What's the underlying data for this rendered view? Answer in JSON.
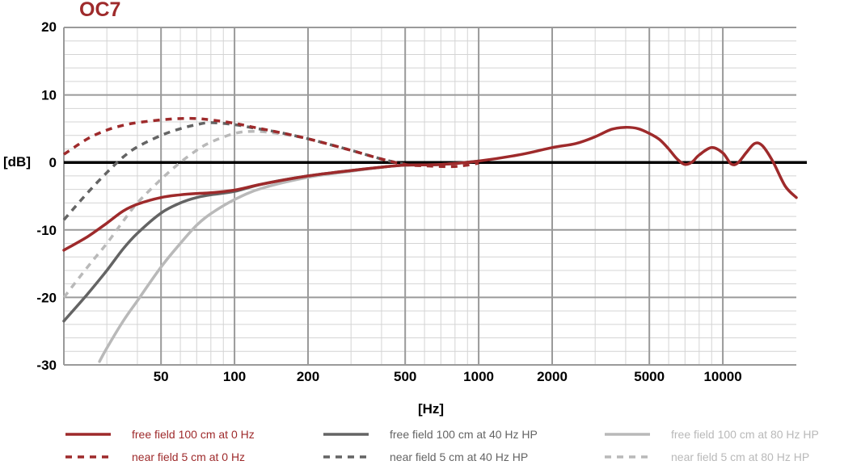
{
  "chart_data": {
    "type": "line",
    "title": "OC7",
    "xlabel": "[Hz]",
    "ylabel": "[dB]",
    "xscale": "log",
    "xlim": [
      20,
      20000
    ],
    "ylim": [
      -30,
      20
    ],
    "xticks": [
      {
        "value": 50,
        "label": "50"
      },
      {
        "value": 100,
        "label": "100"
      },
      {
        "value": 200,
        "label": "200"
      },
      {
        "value": 500,
        "label": "500"
      },
      {
        "value": 1000,
        "label": "1000"
      },
      {
        "value": 2000,
        "label": "2000"
      },
      {
        "value": 5000,
        "label": "5000"
      },
      {
        "value": 10000,
        "label": "10000"
      }
    ],
    "yticks": [
      {
        "value": 20,
        "label": "20"
      },
      {
        "value": 10,
        "label": "10"
      },
      {
        "value": 0,
        "label": "0"
      },
      {
        "value": -10,
        "label": "-10"
      },
      {
        "value": -20,
        "label": "-20"
      },
      {
        "value": -30,
        "label": "-30"
      }
    ],
    "grid": true,
    "legend_position": "bottom",
    "colors": {
      "title": "#9e2a2b",
      "axis_zero": "#000000",
      "grid_major": "#9a9a9a",
      "grid_minor": "#d4d4d4"
    },
    "series": [
      {
        "name": "free field 100 cm at 0 Hz",
        "color": "#9e2a2b",
        "dash": "solid",
        "points": [
          [
            20,
            -13
          ],
          [
            25,
            -11
          ],
          [
            30,
            -9
          ],
          [
            35,
            -7.2
          ],
          [
            40,
            -6.2
          ],
          [
            50,
            -5.2
          ],
          [
            60,
            -4.8
          ],
          [
            70,
            -4.6
          ],
          [
            80,
            -4.5
          ],
          [
            100,
            -4.1
          ],
          [
            130,
            -3.2
          ],
          [
            200,
            -2
          ],
          [
            300,
            -1.2
          ],
          [
            400,
            -0.7
          ],
          [
            500,
            -0.4
          ],
          [
            700,
            -0.3
          ],
          [
            1000,
            0.2
          ],
          [
            1500,
            1.2
          ],
          [
            2000,
            2.2
          ],
          [
            2500,
            2.8
          ],
          [
            3000,
            3.8
          ],
          [
            3500,
            4.9
          ],
          [
            4000,
            5.2
          ],
          [
            4500,
            5
          ],
          [
            5000,
            4.3
          ],
          [
            5500,
            3.4
          ],
          [
            6000,
            2
          ],
          [
            6500,
            0.5
          ],
          [
            7000,
            -0.3
          ],
          [
            7500,
            0.1
          ],
          [
            8000,
            1.1
          ],
          [
            9000,
            2.2
          ],
          [
            10000,
            1.4
          ],
          [
            10800,
            -0.2
          ],
          [
            11500,
            -0.1
          ],
          [
            12500,
            1.5
          ],
          [
            13500,
            2.8
          ],
          [
            14500,
            2.5
          ],
          [
            16000,
            0.2
          ],
          [
            18000,
            -3.5
          ],
          [
            20000,
            -5.2
          ]
        ]
      },
      {
        "name": "free field 100 cm at 40 Hz HP",
        "color": "#646464",
        "dash": "solid",
        "points": [
          [
            20,
            -23.5
          ],
          [
            25,
            -19.5
          ],
          [
            30,
            -16
          ],
          [
            35,
            -12.8
          ],
          [
            40,
            -10.5
          ],
          [
            50,
            -7.5
          ],
          [
            60,
            -6
          ],
          [
            70,
            -5.2
          ],
          [
            80,
            -4.8
          ],
          [
            100,
            -4.3
          ],
          [
            130,
            -3.2
          ],
          [
            200,
            -2
          ],
          [
            300,
            -1.2
          ],
          [
            400,
            -0.7
          ],
          [
            500,
            -0.4
          ],
          [
            700,
            -0.3
          ],
          [
            1000,
            0.2
          ]
        ]
      },
      {
        "name": "free field 100 cm at 80 Hz HP",
        "color": "#b9b9b9",
        "dash": "solid",
        "points": [
          [
            28,
            -29.5
          ],
          [
            30,
            -27.5
          ],
          [
            35,
            -23.5
          ],
          [
            40,
            -20.5
          ],
          [
            50,
            -15.5
          ],
          [
            60,
            -12
          ],
          [
            70,
            -9.3
          ],
          [
            80,
            -7.6
          ],
          [
            100,
            -5.5
          ],
          [
            130,
            -3.8
          ],
          [
            200,
            -2.2
          ],
          [
            300,
            -1.3
          ],
          [
            400,
            -0.7
          ],
          [
            500,
            -0.4
          ]
        ]
      },
      {
        "name": "near field 5 cm at 0 Hz",
        "color": "#9e2a2b",
        "dash": "dashed",
        "points": [
          [
            20,
            1.2
          ],
          [
            25,
            3.5
          ],
          [
            30,
            4.8
          ],
          [
            35,
            5.5
          ],
          [
            40,
            5.9
          ],
          [
            50,
            6.3
          ],
          [
            60,
            6.5
          ],
          [
            70,
            6.5
          ],
          [
            80,
            6.3
          ],
          [
            100,
            5.8
          ],
          [
            120,
            5.2
          ],
          [
            150,
            4.5
          ],
          [
            200,
            3.5
          ],
          [
            300,
            1.8
          ],
          [
            400,
            0.5
          ],
          [
            500,
            -0.3
          ],
          [
            600,
            -0.5
          ],
          [
            700,
            -0.6
          ],
          [
            800,
            -0.6
          ],
          [
            900,
            -0.4
          ],
          [
            1000,
            -0.1
          ]
        ]
      },
      {
        "name": "near field 5 cm at 40 Hz HP",
        "color": "#646464",
        "dash": "dashed",
        "points": [
          [
            20,
            -8.5
          ],
          [
            25,
            -4.5
          ],
          [
            30,
            -1.5
          ],
          [
            35,
            0.8
          ],
          [
            40,
            2.3
          ],
          [
            50,
            4
          ],
          [
            60,
            5
          ],
          [
            70,
            5.6
          ],
          [
            80,
            5.9
          ],
          [
            100,
            5.6
          ],
          [
            120,
            5.1
          ],
          [
            150,
            4.5
          ],
          [
            200,
            3.5
          ],
          [
            300,
            1.8
          ],
          [
            400,
            0.5
          ],
          [
            500,
            -0.3
          ]
        ]
      },
      {
        "name": "near field 5 cm at 80 Hz HP",
        "color": "#b9b9b9",
        "dash": "dashed",
        "points": [
          [
            20,
            -20
          ],
          [
            25,
            -15.5
          ],
          [
            30,
            -12
          ],
          [
            35,
            -8.7
          ],
          [
            40,
            -6
          ],
          [
            50,
            -2.5
          ],
          [
            60,
            0
          ],
          [
            70,
            1.8
          ],
          [
            80,
            3
          ],
          [
            100,
            4.3
          ],
          [
            120,
            4.6
          ],
          [
            150,
            4.3
          ],
          [
            200,
            3.5
          ],
          [
            300,
            1.8
          ],
          [
            400,
            0.5
          ],
          [
            500,
            -0.3
          ]
        ]
      }
    ]
  }
}
